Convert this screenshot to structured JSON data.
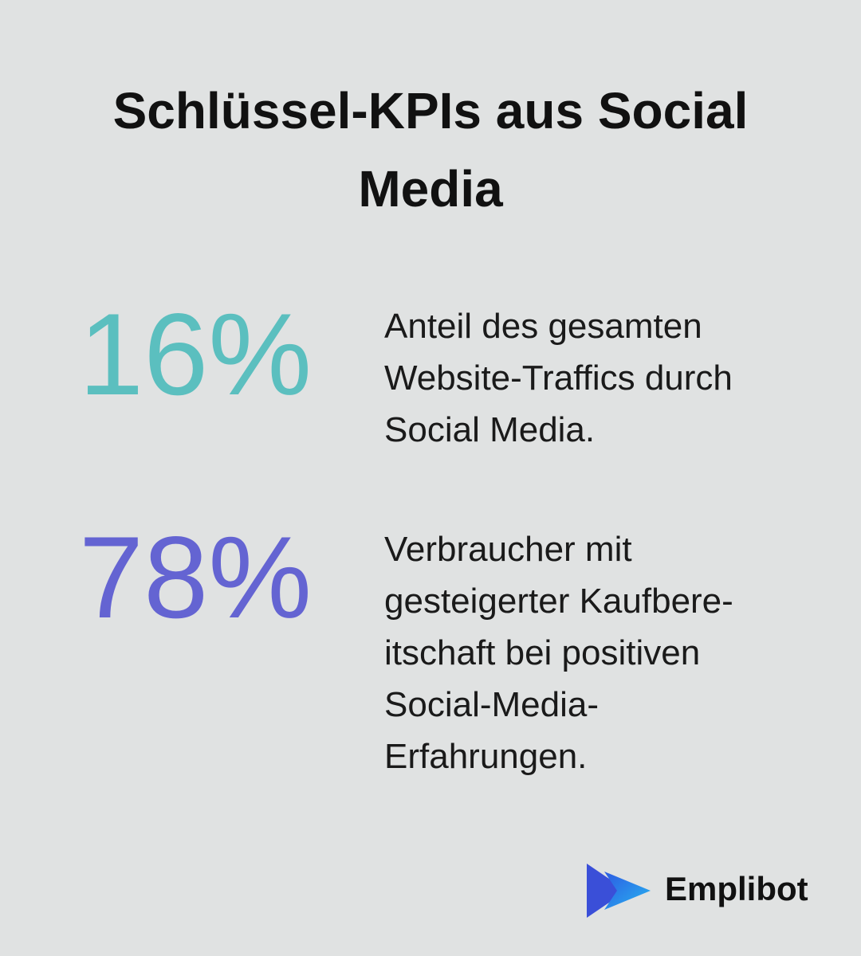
{
  "header": {
    "title_lines": [
      "Schlüssel-KPIs aus Social",
      "Media"
    ]
  },
  "stats": [
    {
      "value": "16%",
      "color": "#5bbfbf",
      "description_lines": [
        "Anteil des gesamten",
        "Website-Traffics durch",
        "Social Media."
      ]
    },
    {
      "value": "78%",
      "color": "#6464d2",
      "description_lines": [
        "Verbraucher mit",
        "gesteigerter Kaufbere-",
        "itschaft bei positiven",
        "Social-Media-",
        "Erfahrungen."
      ]
    }
  ],
  "footer": {
    "brand": "Emplibot"
  }
}
